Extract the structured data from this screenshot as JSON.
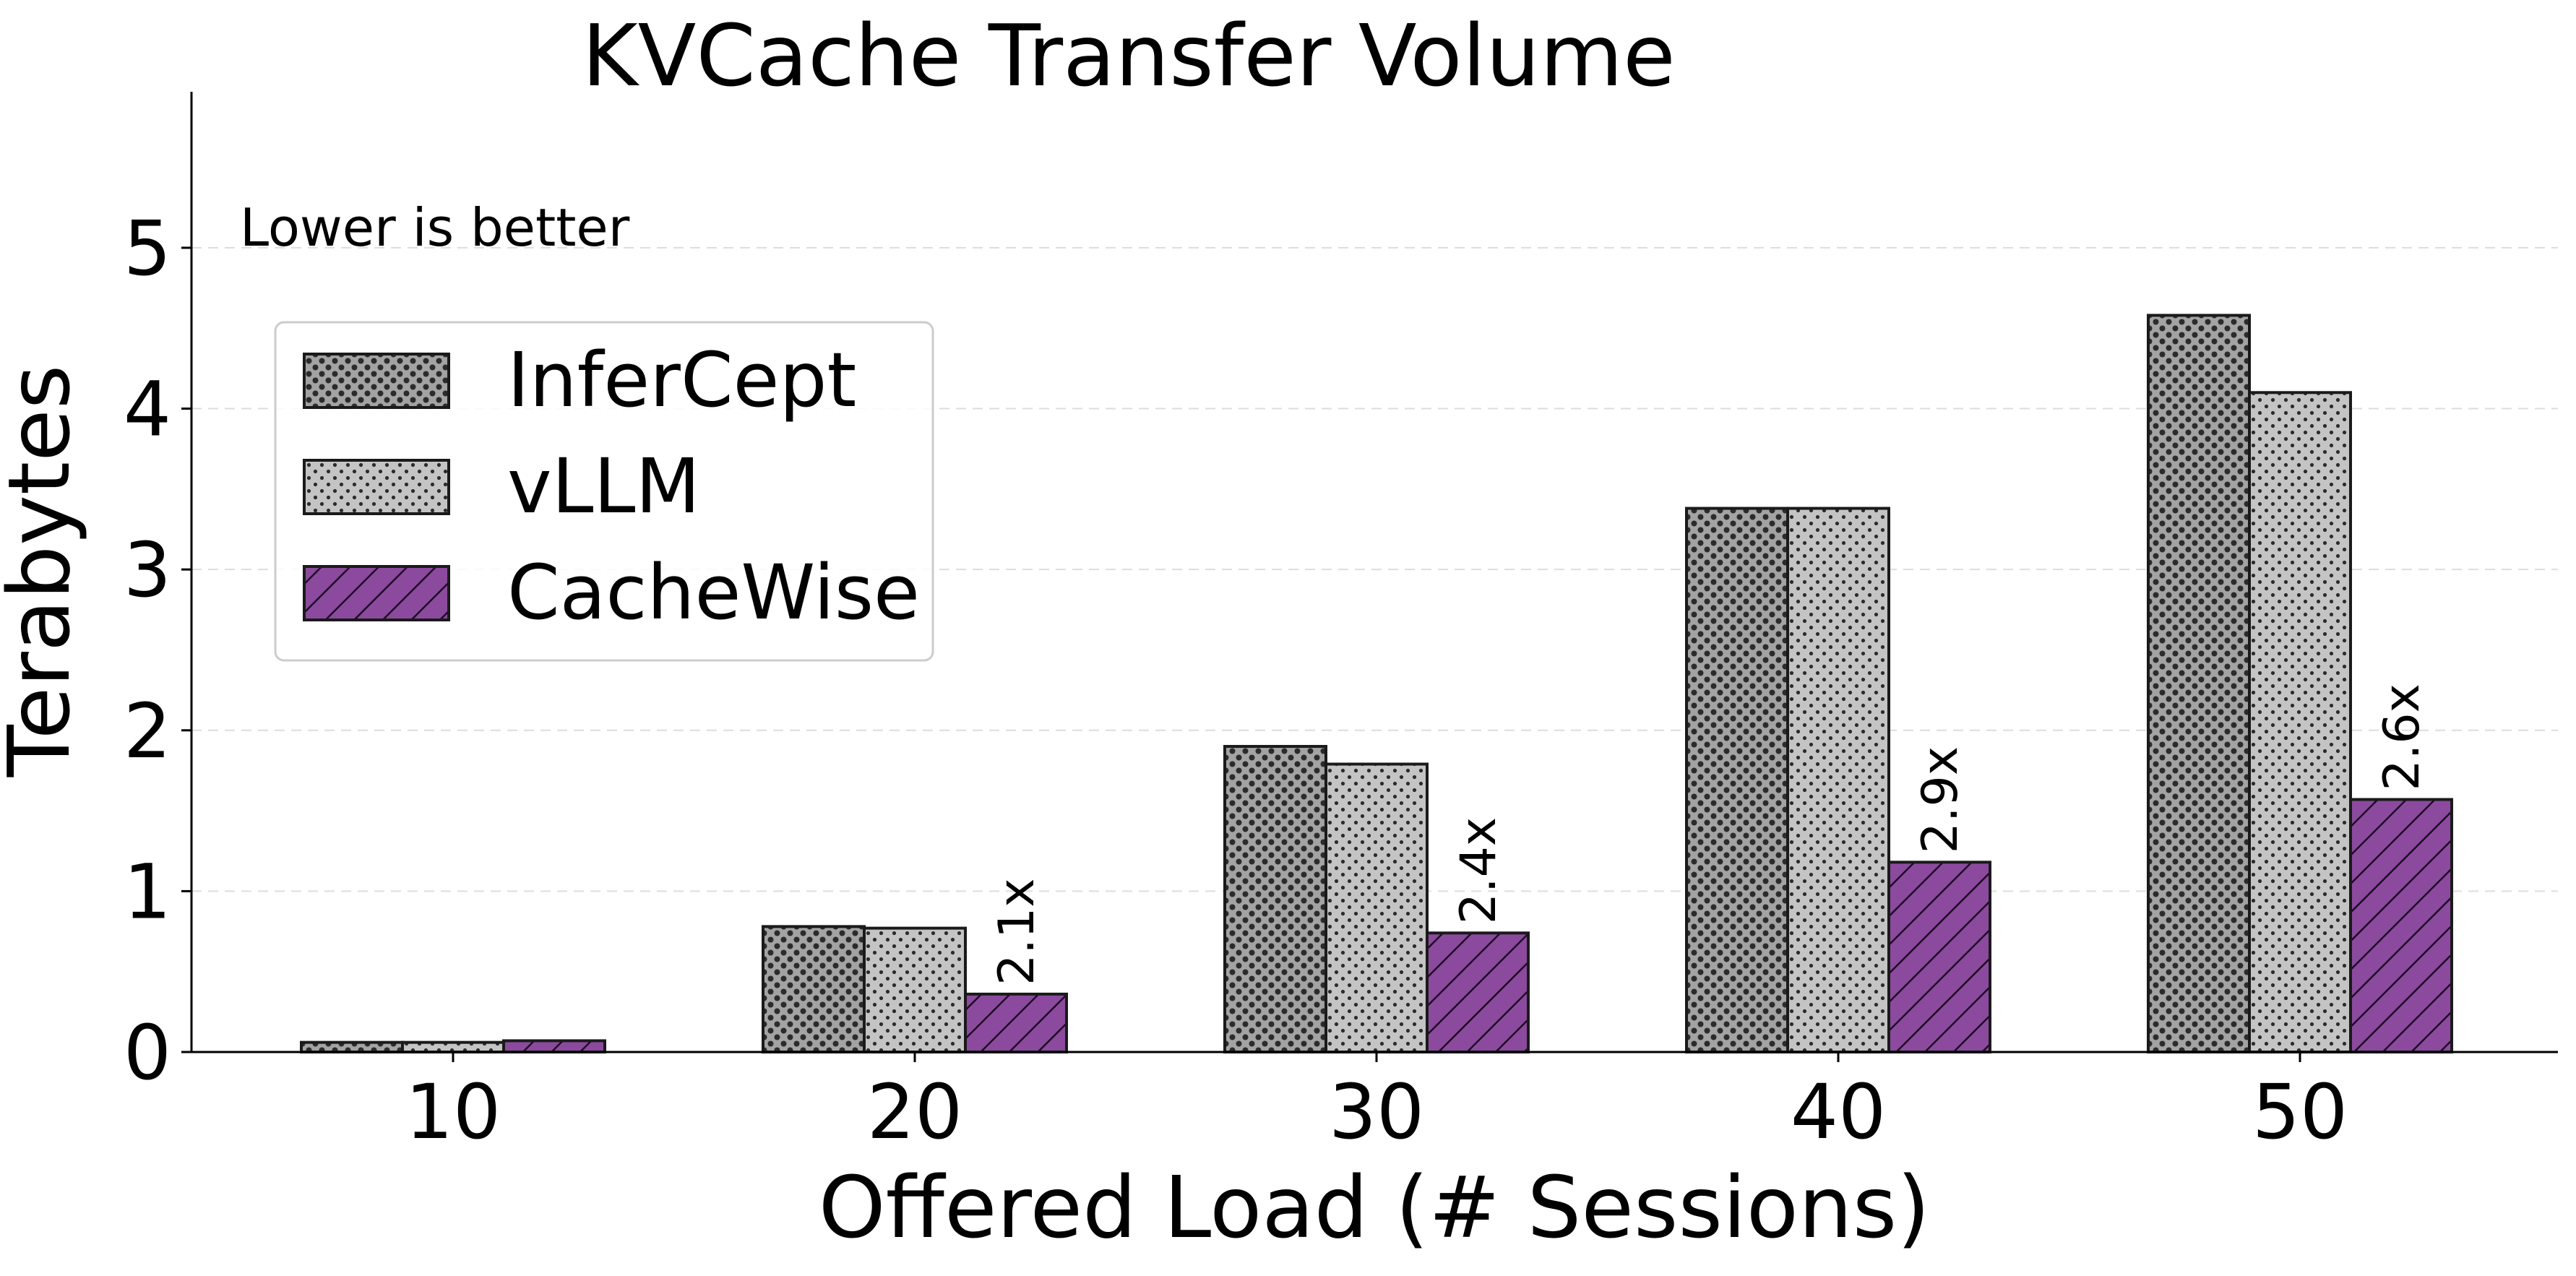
{
  "chart_data": {
    "type": "bar",
    "title": "KVCache Transfer Volume",
    "xlabel": "Offered Load (# Sessions)",
    "ylabel": "Terabytes",
    "categories": [
      "10",
      "20",
      "30",
      "40",
      "50"
    ],
    "yticks": [
      "0",
      "1",
      "2",
      "3",
      "4",
      "5"
    ],
    "ylim": [
      0,
      5.97
    ],
    "grid": "horizontal dashed",
    "legend_position": "upper-left",
    "annotation": "Lower is better",
    "series": [
      {
        "name": "InferCept",
        "values": [
          0.06,
          0.78,
          1.9,
          3.38,
          4.58
        ],
        "color": "#a3a3a3",
        "hatch": "dense-dots"
      },
      {
        "name": "vLLM",
        "values": [
          0.06,
          0.77,
          1.79,
          3.38,
          4.1
        ],
        "color": "#c4c4c4",
        "hatch": "sparse-dots"
      },
      {
        "name": "CacheWise",
        "values": [
          0.07,
          0.36,
          0.74,
          1.18,
          1.57
        ],
        "color": "#8c4a9e",
        "hatch": "diagonal"
      }
    ],
    "bar_labels": [
      "",
      "2.1x",
      "2.4x",
      "2.9x",
      "2.6x"
    ]
  }
}
